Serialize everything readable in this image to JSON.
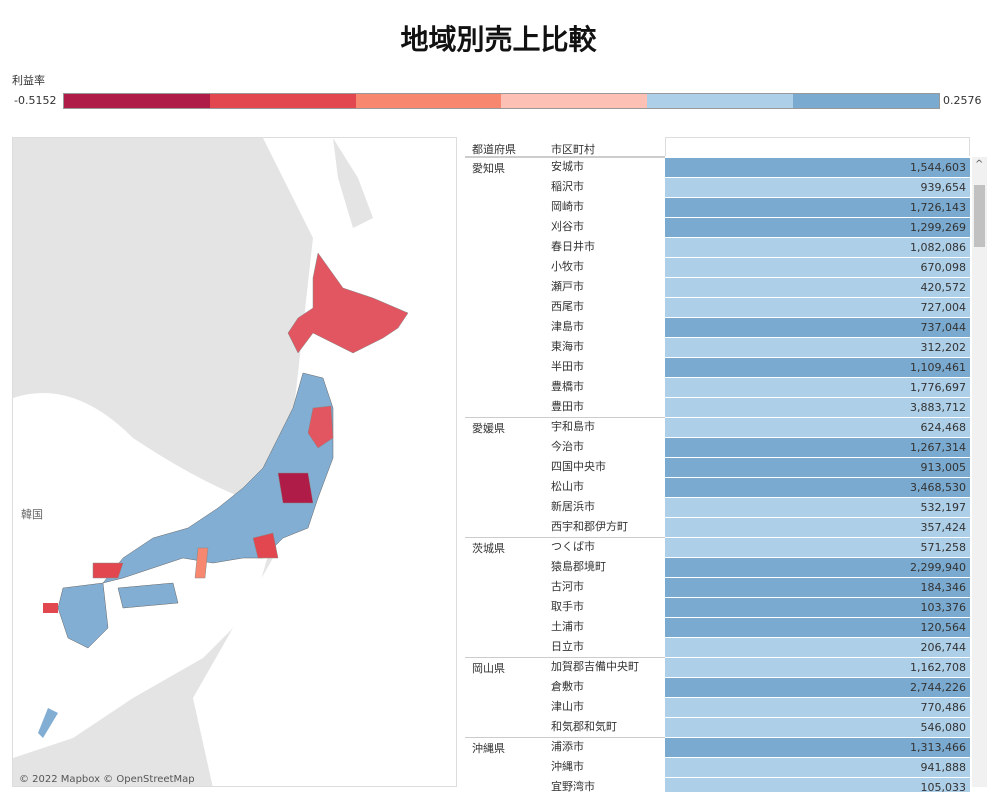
{
  "header": {
    "title": "地域別売上比較"
  },
  "legend": {
    "label": "利益率",
    "min": -0.5152,
    "max": 0.2576,
    "colors": [
      "#b01c48",
      "#e2474f",
      "#f7876f",
      "#fcc0b5",
      "#aecfe8",
      "#7aaad0"
    ]
  },
  "map": {
    "attribution": "© 2022 Mapbox © OpenStreetMap",
    "place_label": "韓国"
  },
  "table": {
    "columns": [
      "都道府県",
      "市区町村"
    ],
    "groups": [
      {
        "prefecture": "愛知県",
        "rows": [
          {
            "city": "安城市",
            "value": "1,544,603",
            "color": "#7aaad0"
          },
          {
            "city": "稲沢市",
            "value": "939,654",
            "color": "#aecfe8"
          },
          {
            "city": "岡崎市",
            "value": "1,726,143",
            "color": "#7aaad0"
          },
          {
            "city": "刈谷市",
            "value": "1,299,269",
            "color": "#7aaad0"
          },
          {
            "city": "春日井市",
            "value": "1,082,086",
            "color": "#aecfe8"
          },
          {
            "city": "小牧市",
            "value": "670,098",
            "color": "#aecfe8"
          },
          {
            "city": "瀬戸市",
            "value": "420,572",
            "color": "#aecfe8"
          },
          {
            "city": "西尾市",
            "value": "727,004",
            "color": "#aecfe8"
          },
          {
            "city": "津島市",
            "value": "737,044",
            "color": "#7aaad0"
          },
          {
            "city": "東海市",
            "value": "312,202",
            "color": "#aecfe8"
          },
          {
            "city": "半田市",
            "value": "1,109,461",
            "color": "#7aaad0"
          },
          {
            "city": "豊橋市",
            "value": "1,776,697",
            "color": "#aecfe8"
          },
          {
            "city": "豊田市",
            "value": "3,883,712",
            "color": "#aecfe8"
          }
        ]
      },
      {
        "prefecture": "愛媛県",
        "rows": [
          {
            "city": "宇和島市",
            "value": "624,468",
            "color": "#aecfe8"
          },
          {
            "city": "今治市",
            "value": "1,267,314",
            "color": "#7aaad0"
          },
          {
            "city": "四国中央市",
            "value": "913,005",
            "color": "#7aaad0"
          },
          {
            "city": "松山市",
            "value": "3,468,530",
            "color": "#7aaad0"
          },
          {
            "city": "新居浜市",
            "value": "532,197",
            "color": "#aecfe8"
          },
          {
            "city": "西宇和郡伊方町",
            "value": "357,424",
            "color": "#aecfe8"
          }
        ]
      },
      {
        "prefecture": "茨城県",
        "rows": [
          {
            "city": "つくば市",
            "value": "571,258",
            "color": "#aecfe8"
          },
          {
            "city": "猿島郡境町",
            "value": "2,299,940",
            "color": "#7aaad0"
          },
          {
            "city": "古河市",
            "value": "184,346",
            "color": "#7aaad0"
          },
          {
            "city": "取手市",
            "value": "103,376",
            "color": "#7aaad0"
          },
          {
            "city": "土浦市",
            "value": "120,564",
            "color": "#7aaad0"
          },
          {
            "city": "日立市",
            "value": "206,744",
            "color": "#aecfe8"
          }
        ]
      },
      {
        "prefecture": "岡山県",
        "rows": [
          {
            "city": "加賀郡吉備中央町",
            "value": "1,162,708",
            "color": "#aecfe8"
          },
          {
            "city": "倉敷市",
            "value": "2,744,226",
            "color": "#7aaad0"
          },
          {
            "city": "津山市",
            "value": "770,486",
            "color": "#aecfe8"
          },
          {
            "city": "和気郡和気町",
            "value": "546,080",
            "color": "#aecfe8"
          }
        ]
      },
      {
        "prefecture": "沖縄県",
        "rows": [
          {
            "city": "浦添市",
            "value": "1,313,466",
            "color": "#7aaad0"
          },
          {
            "city": "沖縄市",
            "value": "941,888",
            "color": "#aecfe8"
          },
          {
            "city": "宜野湾市",
            "value": "105,033",
            "color": "#aecfe8"
          }
        ]
      }
    ]
  }
}
